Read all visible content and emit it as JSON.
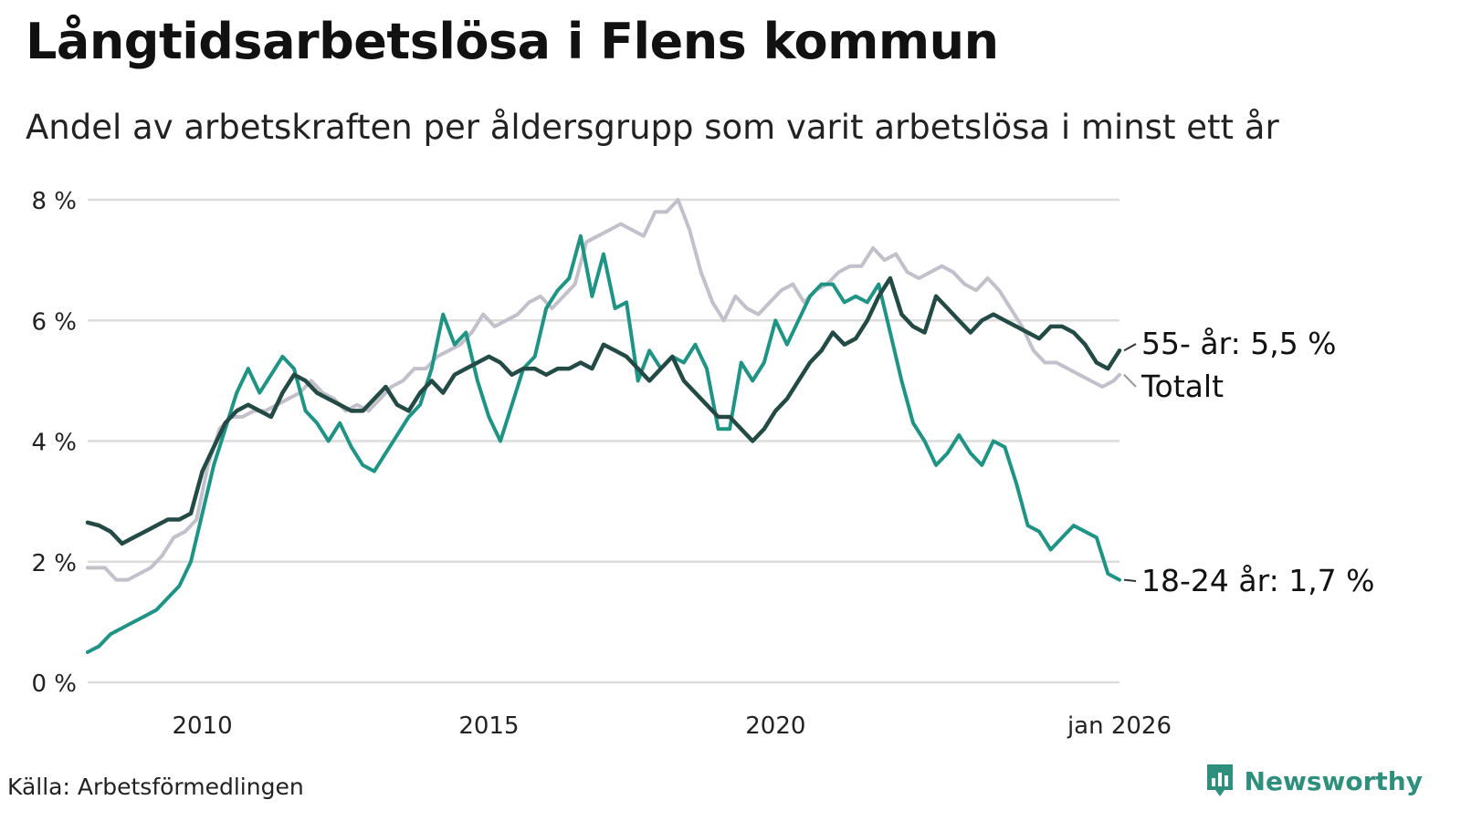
{
  "title": "Långtidsarbetslösa i Flens kommun",
  "subtitle": "Andel av arbetskraften per åldersgrupp som varit arbetslösa i minst ett år",
  "source": "Källa: Arbetsförmedlingen",
  "brand": {
    "name": "Newsworthy",
    "icon": "bar-chart-logo-icon"
  },
  "colors": {
    "youth": "#1f9484",
    "senior": "#234a44",
    "total": "#c2c1cb",
    "grid": "#dcdcdc",
    "brand": "#2f8f7d"
  },
  "chart_data": {
    "type": "line",
    "title": "Långtidsarbetslösa i Flens kommun",
    "xlabel": "",
    "ylabel": "",
    "xlim": [
      2008.0,
      2026.0
    ],
    "ylim": [
      0,
      8
    ],
    "y_ticks": [
      {
        "value": 0,
        "label": "0 %"
      },
      {
        "value": 2,
        "label": "2 %"
      },
      {
        "value": 4,
        "label": "4 %"
      },
      {
        "value": 6,
        "label": "6 %"
      },
      {
        "value": 8,
        "label": "8 %"
      }
    ],
    "x_ticks": [
      {
        "value": 2010,
        "label": "2010"
      },
      {
        "value": 2015,
        "label": "2015"
      },
      {
        "value": 2020,
        "label": "2020"
      },
      {
        "value": 2026,
        "label": "jan 2026"
      }
    ],
    "grid": true,
    "series": [
      {
        "key": "total",
        "name": "Totalt",
        "end_label": "Totalt",
        "points": [
          [
            2008.0,
            1.9
          ],
          [
            2008.3,
            1.9
          ],
          [
            2008.5,
            1.7
          ],
          [
            2008.7,
            1.7
          ],
          [
            2008.9,
            1.8
          ],
          [
            2009.1,
            1.9
          ],
          [
            2009.3,
            2.1
          ],
          [
            2009.5,
            2.4
          ],
          [
            2009.7,
            2.5
          ],
          [
            2009.9,
            2.7
          ],
          [
            2010.1,
            3.6
          ],
          [
            2010.3,
            4.2
          ],
          [
            2010.5,
            4.4
          ],
          [
            2010.7,
            4.4
          ],
          [
            2010.9,
            4.5
          ],
          [
            2011.1,
            4.5
          ],
          [
            2011.3,
            4.6
          ],
          [
            2011.5,
            4.7
          ],
          [
            2011.7,
            4.8
          ],
          [
            2011.9,
            5.0
          ],
          [
            2012.1,
            4.8
          ],
          [
            2012.3,
            4.7
          ],
          [
            2012.5,
            4.5
          ],
          [
            2012.7,
            4.6
          ],
          [
            2012.9,
            4.5
          ],
          [
            2013.1,
            4.7
          ],
          [
            2013.3,
            4.9
          ],
          [
            2013.5,
            5.0
          ],
          [
            2013.7,
            5.2
          ],
          [
            2013.9,
            5.2
          ],
          [
            2014.1,
            5.4
          ],
          [
            2014.3,
            5.5
          ],
          [
            2014.5,
            5.6
          ],
          [
            2014.7,
            5.8
          ],
          [
            2014.9,
            6.1
          ],
          [
            2015.1,
            5.9
          ],
          [
            2015.3,
            6.0
          ],
          [
            2015.5,
            6.1
          ],
          [
            2015.7,
            6.3
          ],
          [
            2015.9,
            6.4
          ],
          [
            2016.1,
            6.2
          ],
          [
            2016.3,
            6.4
          ],
          [
            2016.5,
            6.6
          ],
          [
            2016.7,
            7.3
          ],
          [
            2016.9,
            7.4
          ],
          [
            2017.1,
            7.5
          ],
          [
            2017.3,
            7.6
          ],
          [
            2017.5,
            7.5
          ],
          [
            2017.7,
            7.4
          ],
          [
            2017.9,
            7.8
          ],
          [
            2018.1,
            7.8
          ],
          [
            2018.3,
            8.0
          ],
          [
            2018.5,
            7.5
          ],
          [
            2018.7,
            6.8
          ],
          [
            2018.9,
            6.3
          ],
          [
            2019.1,
            6.0
          ],
          [
            2019.3,
            6.4
          ],
          [
            2019.5,
            6.2
          ],
          [
            2019.7,
            6.1
          ],
          [
            2019.9,
            6.3
          ],
          [
            2020.1,
            6.5
          ],
          [
            2020.3,
            6.6
          ],
          [
            2020.5,
            6.3
          ],
          [
            2020.7,
            6.5
          ],
          [
            2020.9,
            6.6
          ],
          [
            2021.1,
            6.8
          ],
          [
            2021.3,
            6.9
          ],
          [
            2021.5,
            6.9
          ],
          [
            2021.7,
            7.2
          ],
          [
            2021.9,
            7.0
          ],
          [
            2022.1,
            7.1
          ],
          [
            2022.3,
            6.8
          ],
          [
            2022.5,
            6.7
          ],
          [
            2022.7,
            6.8
          ],
          [
            2022.9,
            6.9
          ],
          [
            2023.1,
            6.8
          ],
          [
            2023.3,
            6.6
          ],
          [
            2023.5,
            6.5
          ],
          [
            2023.7,
            6.7
          ],
          [
            2023.9,
            6.5
          ],
          [
            2024.1,
            6.2
          ],
          [
            2024.3,
            5.9
          ],
          [
            2024.5,
            5.5
          ],
          [
            2024.7,
            5.3
          ],
          [
            2024.9,
            5.3
          ],
          [
            2025.1,
            5.2
          ],
          [
            2025.3,
            5.1
          ],
          [
            2025.5,
            5.0
          ],
          [
            2025.7,
            4.9
          ],
          [
            2025.9,
            5.0
          ],
          [
            2026.0,
            5.1
          ]
        ]
      },
      {
        "key": "youth",
        "name": "18-24 år",
        "end_label": "18-24 år: 1,7 %",
        "points": [
          [
            2008.0,
            0.5
          ],
          [
            2008.2,
            0.6
          ],
          [
            2008.4,
            0.8
          ],
          [
            2008.6,
            0.9
          ],
          [
            2008.8,
            1.0
          ],
          [
            2009.0,
            1.1
          ],
          [
            2009.2,
            1.2
          ],
          [
            2009.4,
            1.4
          ],
          [
            2009.6,
            1.6
          ],
          [
            2009.8,
            2.0
          ],
          [
            2010.0,
            2.8
          ],
          [
            2010.2,
            3.6
          ],
          [
            2010.4,
            4.2
          ],
          [
            2010.6,
            4.8
          ],
          [
            2010.8,
            5.2
          ],
          [
            2011.0,
            4.8
          ],
          [
            2011.2,
            5.1
          ],
          [
            2011.4,
            5.4
          ],
          [
            2011.6,
            5.2
          ],
          [
            2011.8,
            4.5
          ],
          [
            2012.0,
            4.3
          ],
          [
            2012.2,
            4.0
          ],
          [
            2012.4,
            4.3
          ],
          [
            2012.6,
            3.9
          ],
          [
            2012.8,
            3.6
          ],
          [
            2013.0,
            3.5
          ],
          [
            2013.2,
            3.8
          ],
          [
            2013.4,
            4.1
          ],
          [
            2013.6,
            4.4
          ],
          [
            2013.8,
            4.6
          ],
          [
            2014.0,
            5.2
          ],
          [
            2014.2,
            6.1
          ],
          [
            2014.4,
            5.6
          ],
          [
            2014.6,
            5.8
          ],
          [
            2014.8,
            5.0
          ],
          [
            2015.0,
            4.4
          ],
          [
            2015.2,
            4.0
          ],
          [
            2015.4,
            4.6
          ],
          [
            2015.6,
            5.2
          ],
          [
            2015.8,
            5.4
          ],
          [
            2016.0,
            6.2
          ],
          [
            2016.2,
            6.5
          ],
          [
            2016.4,
            6.7
          ],
          [
            2016.6,
            7.4
          ],
          [
            2016.8,
            6.4
          ],
          [
            2017.0,
            7.1
          ],
          [
            2017.2,
            6.2
          ],
          [
            2017.4,
            6.3
          ],
          [
            2017.6,
            5.0
          ],
          [
            2017.8,
            5.5
          ],
          [
            2018.0,
            5.2
          ],
          [
            2018.2,
            5.4
          ],
          [
            2018.4,
            5.3
          ],
          [
            2018.6,
            5.6
          ],
          [
            2018.8,
            5.2
          ],
          [
            2019.0,
            4.2
          ],
          [
            2019.2,
            4.2
          ],
          [
            2019.4,
            5.3
          ],
          [
            2019.6,
            5.0
          ],
          [
            2019.8,
            5.3
          ],
          [
            2020.0,
            6.0
          ],
          [
            2020.2,
            5.6
          ],
          [
            2020.4,
            6.0
          ],
          [
            2020.6,
            6.4
          ],
          [
            2020.8,
            6.6
          ],
          [
            2021.0,
            6.6
          ],
          [
            2021.2,
            6.3
          ],
          [
            2021.4,
            6.4
          ],
          [
            2021.6,
            6.3
          ],
          [
            2021.8,
            6.6
          ],
          [
            2022.0,
            5.8
          ],
          [
            2022.2,
            5.0
          ],
          [
            2022.4,
            4.3
          ],
          [
            2022.6,
            4.0
          ],
          [
            2022.8,
            3.6
          ],
          [
            2023.0,
            3.8
          ],
          [
            2023.2,
            4.1
          ],
          [
            2023.4,
            3.8
          ],
          [
            2023.6,
            3.6
          ],
          [
            2023.8,
            4.0
          ],
          [
            2024.0,
            3.9
          ],
          [
            2024.2,
            3.3
          ],
          [
            2024.4,
            2.6
          ],
          [
            2024.6,
            2.5
          ],
          [
            2024.8,
            2.2
          ],
          [
            2025.0,
            2.4
          ],
          [
            2025.2,
            2.6
          ],
          [
            2025.4,
            2.5
          ],
          [
            2025.6,
            2.4
          ],
          [
            2025.8,
            1.8
          ],
          [
            2026.0,
            1.7
          ]
        ]
      },
      {
        "key": "senior",
        "name": "55- år",
        "end_label": "55- år: 5,5 %",
        "points": [
          [
            2008.0,
            2.65
          ],
          [
            2008.2,
            2.6
          ],
          [
            2008.4,
            2.5
          ],
          [
            2008.6,
            2.3
          ],
          [
            2008.8,
            2.4
          ],
          [
            2009.0,
            2.5
          ],
          [
            2009.2,
            2.6
          ],
          [
            2009.4,
            2.7
          ],
          [
            2009.6,
            2.7
          ],
          [
            2009.8,
            2.8
          ],
          [
            2010.0,
            3.5
          ],
          [
            2010.2,
            3.9
          ],
          [
            2010.4,
            4.3
          ],
          [
            2010.6,
            4.5
          ],
          [
            2010.8,
            4.6
          ],
          [
            2011.0,
            4.5
          ],
          [
            2011.2,
            4.4
          ],
          [
            2011.4,
            4.8
          ],
          [
            2011.6,
            5.1
          ],
          [
            2011.8,
            5.0
          ],
          [
            2012.0,
            4.8
          ],
          [
            2012.2,
            4.7
          ],
          [
            2012.4,
            4.6
          ],
          [
            2012.6,
            4.5
          ],
          [
            2012.8,
            4.5
          ],
          [
            2013.0,
            4.7
          ],
          [
            2013.2,
            4.9
          ],
          [
            2013.4,
            4.6
          ],
          [
            2013.6,
            4.5
          ],
          [
            2013.8,
            4.8
          ],
          [
            2014.0,
            5.0
          ],
          [
            2014.2,
            4.8
          ],
          [
            2014.4,
            5.1
          ],
          [
            2014.6,
            5.2
          ],
          [
            2014.8,
            5.3
          ],
          [
            2015.0,
            5.4
          ],
          [
            2015.2,
            5.3
          ],
          [
            2015.4,
            5.1
          ],
          [
            2015.6,
            5.2
          ],
          [
            2015.8,
            5.2
          ],
          [
            2016.0,
            5.1
          ],
          [
            2016.2,
            5.2
          ],
          [
            2016.4,
            5.2
          ],
          [
            2016.6,
            5.3
          ],
          [
            2016.8,
            5.2
          ],
          [
            2017.0,
            5.6
          ],
          [
            2017.2,
            5.5
          ],
          [
            2017.4,
            5.4
          ],
          [
            2017.6,
            5.2
          ],
          [
            2017.8,
            5.0
          ],
          [
            2018.0,
            5.2
          ],
          [
            2018.2,
            5.4
          ],
          [
            2018.4,
            5.0
          ],
          [
            2018.6,
            4.8
          ],
          [
            2018.8,
            4.6
          ],
          [
            2019.0,
            4.4
          ],
          [
            2019.2,
            4.4
          ],
          [
            2019.4,
            4.2
          ],
          [
            2019.6,
            4.0
          ],
          [
            2019.8,
            4.2
          ],
          [
            2020.0,
            4.5
          ],
          [
            2020.2,
            4.7
          ],
          [
            2020.4,
            5.0
          ],
          [
            2020.6,
            5.3
          ],
          [
            2020.8,
            5.5
          ],
          [
            2021.0,
            5.8
          ],
          [
            2021.2,
            5.6
          ],
          [
            2021.4,
            5.7
          ],
          [
            2021.6,
            6.0
          ],
          [
            2021.8,
            6.4
          ],
          [
            2022.0,
            6.7
          ],
          [
            2022.2,
            6.1
          ],
          [
            2022.4,
            5.9
          ],
          [
            2022.6,
            5.8
          ],
          [
            2022.8,
            6.4
          ],
          [
            2023.0,
            6.2
          ],
          [
            2023.2,
            6.0
          ],
          [
            2023.4,
            5.8
          ],
          [
            2023.6,
            6.0
          ],
          [
            2023.8,
            6.1
          ],
          [
            2024.0,
            6.0
          ],
          [
            2024.2,
            5.9
          ],
          [
            2024.4,
            5.8
          ],
          [
            2024.6,
            5.7
          ],
          [
            2024.8,
            5.9
          ],
          [
            2025.0,
            5.9
          ],
          [
            2025.2,
            5.8
          ],
          [
            2025.4,
            5.6
          ],
          [
            2025.6,
            5.3
          ],
          [
            2025.8,
            5.2
          ],
          [
            2026.0,
            5.5
          ]
        ]
      }
    ]
  }
}
